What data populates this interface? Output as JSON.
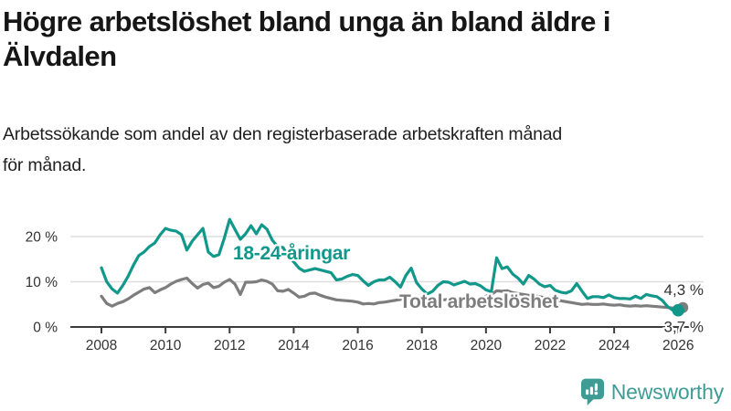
{
  "header": {
    "title_line1": "Högre arbetslöshet bland unga än bland äldre i",
    "title_line2": "Älvdalen",
    "subtitle_line1": "Arbetssökande som andel av den registerbaserade arbetskraften månad",
    "subtitle_line2": "för månad."
  },
  "branding": {
    "name": "Newsworthy",
    "color": "#3f9c95",
    "icon": "bar-chart-speech-bubble-icon"
  },
  "chart_data": {
    "type": "line",
    "title": "",
    "xlabel": "",
    "ylabel": "",
    "x_axis": {
      "tick_values": [
        2008,
        2010,
        2012,
        2014,
        2016,
        2018,
        2020,
        2022,
        2024,
        2026
      ],
      "tick_labels": [
        "2008",
        "2010",
        "2012",
        "2014",
        "2016",
        "2018",
        "2020",
        "2022",
        "2024",
        "2026"
      ],
      "range": [
        2007.1,
        2026.8
      ]
    },
    "y_axis": {
      "tick_values": [
        0,
        10,
        20
      ],
      "tick_labels": [
        "0 %",
        "10 %",
        "20 %"
      ],
      "gridline_values": [
        10,
        20
      ],
      "range": [
        0,
        30
      ],
      "unit": "%"
    },
    "sampling": {
      "start_year": 2008,
      "interval_months": 2,
      "end_year": 2026
    },
    "series": [
      {
        "name": "Total arbetslöshet",
        "color": "#7d7d7d",
        "end_label": "4,3 %",
        "end_value": 4.3,
        "values": [
          6.8,
          5.2,
          4.6,
          5.2,
          5.6,
          6.2,
          7.0,
          7.7,
          8.4,
          8.7,
          7.6,
          8.2,
          8.7,
          9.5,
          10.1,
          10.5,
          10.8,
          9.6,
          8.6,
          9.4,
          9.7,
          8.7,
          9.0,
          9.9,
          10.5,
          9.5,
          7.2,
          9.9,
          9.9,
          10.0,
          10.4,
          10.1,
          9.5,
          8.0,
          7.9,
          8.3,
          7.5,
          6.6,
          6.8,
          7.4,
          7.5,
          7.0,
          6.6,
          6.3,
          6.0,
          5.9,
          5.8,
          5.7,
          5.5,
          5.1,
          5.2,
          5.1,
          5.4,
          5.5,
          5.7,
          5.9,
          6.1,
          6.3,
          6.0,
          5.9,
          6.2,
          6.4,
          6.3,
          6.1,
          6.0,
          6.1,
          6.2,
          6.1,
          5.9,
          5.8,
          6.0,
          6.3,
          6.8,
          7.2,
          8.0,
          7.9,
          8.0,
          7.6,
          7.4,
          7.2,
          7.0,
          6.9,
          6.7,
          6.5,
          6.3,
          6.1,
          5.8,
          5.6,
          5.4,
          5.2,
          5.0,
          5.1,
          5.0,
          5.0,
          5.1,
          4.9,
          4.8,
          4.9,
          4.7,
          4.6,
          4.7,
          4.6,
          4.7,
          4.6,
          4.5,
          4.4,
          4.3,
          4.2,
          4.3
        ]
      },
      {
        "name": "18-24-åringar",
        "color": "#12988b",
        "end_label": "3,7 %",
        "end_value": 3.7,
        "values": [
          13.1,
          10.0,
          8.4,
          7.5,
          9.2,
          11.2,
          13.7,
          15.8,
          16.6,
          17.8,
          18.6,
          20.4,
          21.8,
          21.4,
          21.2,
          20.4,
          17.0,
          19.0,
          20.4,
          21.8,
          16.6,
          15.6,
          16.0,
          19.6,
          23.8,
          21.6,
          19.4,
          20.6,
          22.4,
          20.6,
          22.6,
          21.6,
          19.2,
          17.8,
          17.6,
          15.6,
          14.4,
          13.0,
          12.3,
          12.6,
          12.9,
          12.6,
          12.3,
          12.0,
          10.4,
          10.6,
          11.2,
          11.6,
          11.4,
          10.2,
          9.2,
          10.0,
          10.4,
          10.4,
          11.0,
          10.0,
          8.8,
          11.4,
          13.0,
          9.8,
          8.4,
          7.3,
          7.9,
          9.2,
          10.0,
          9.9,
          9.3,
          9.7,
          10.1,
          9.5,
          9.6,
          9.1,
          8.2,
          7.8,
          15.3,
          12.9,
          13.3,
          11.7,
          10.8,
          9.5,
          11.4,
          10.6,
          9.5,
          8.9,
          9.2,
          8.1,
          7.7,
          7.5,
          8.0,
          9.6,
          7.9,
          6.3,
          6.7,
          6.7,
          6.5,
          7.1,
          6.5,
          6.3,
          6.3,
          6.2,
          6.8,
          6.3,
          7.2,
          6.9,
          6.7,
          5.9,
          4.5,
          3.7,
          3.7
        ]
      }
    ],
    "legend_position": "on-line-labels",
    "grid": "horizontal-only"
  }
}
